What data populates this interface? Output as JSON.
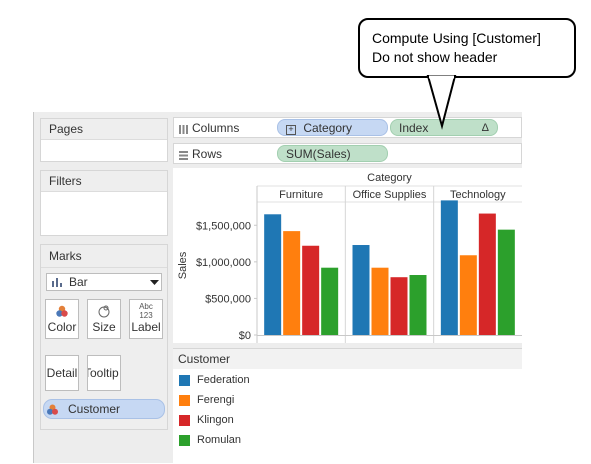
{
  "callout": {
    "line1": "Compute Using [Customer]",
    "line2": "Do not show header"
  },
  "panels": {
    "pages_title": "Pages",
    "filters_title": "Filters",
    "marks_title": "Marks"
  },
  "marks": {
    "mark_type": "Bar",
    "buttons": [
      {
        "label": "Color",
        "icon": "color-dots-icon"
      },
      {
        "label": "Size",
        "icon": "size-circles-icon"
      },
      {
        "label": "Label",
        "icon": "label-abc-icon"
      },
      {
        "label": "Detail",
        "icon": ""
      },
      {
        "label": "Tooltip",
        "icon": ""
      }
    ],
    "color_field": "Customer"
  },
  "shelves": {
    "columns_label": "Columns",
    "rows_label": "Rows",
    "columns_pills": [
      {
        "text": "Category",
        "kind": "dimension"
      },
      {
        "text": "Index",
        "kind": "measure",
        "badge": "Δ"
      }
    ],
    "rows_pills": [
      {
        "text": "SUM(Sales)",
        "kind": "measure"
      }
    ]
  },
  "chart_data": {
    "type": "bar",
    "column_header": "Category",
    "ylabel": "Sales",
    "ylim": [
      0,
      1900000
    ],
    "yticks": [
      0,
      500000,
      1000000,
      1500000
    ],
    "ytick_labels": [
      "$0",
      "$500,000",
      "$1,000,000",
      "$1,500,000"
    ],
    "categories": [
      "Furniture",
      "Office Supplies",
      "Technology"
    ],
    "series": [
      {
        "name": "Federation",
        "color": "#1f77b4",
        "values": [
          1650000,
          1230000,
          1840000
        ]
      },
      {
        "name": "Ferengi",
        "color": "#ff7f0e",
        "values": [
          1420000,
          920000,
          1090000
        ]
      },
      {
        "name": "Klingon",
        "color": "#d62728",
        "values": [
          1220000,
          790000,
          1660000
        ]
      },
      {
        "name": "Romulan",
        "color": "#2ca02c",
        "values": [
          920000,
          820000,
          1440000
        ]
      }
    ]
  },
  "legend": {
    "title": "Customer"
  }
}
